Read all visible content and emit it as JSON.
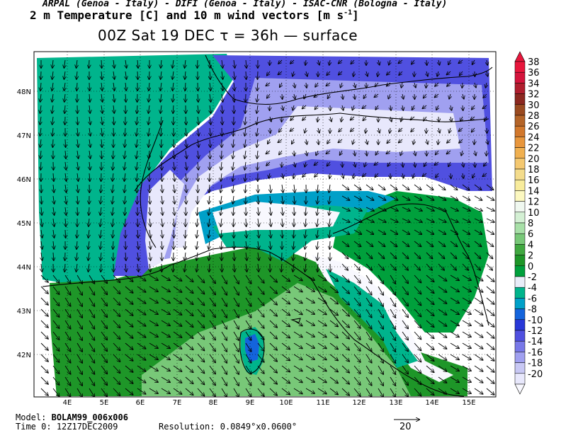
{
  "header": {
    "line1": "ARPAL (Genoa - Italy)  -  DIFI (Genoa - Italy)  -  ISAC-CNR (Bologna - Italy)",
    "line2": "2 m Temperature [C] and 10 m wind vectors [m s",
    "line2_sup": "-1",
    "line2_end": "]",
    "line3": "00Z Sat 19 DEC  τ = 36h  —  surface"
  },
  "footer": {
    "model_label": "Model:",
    "model_value": "BOLAM99_006x006",
    "time_label": "Time 0:",
    "time_value": "12Z17DEC2009",
    "resolution_label": "Resolution:",
    "resolution_value": "0.0849°x0.0600°",
    "vector_ref": "20"
  },
  "axes": {
    "lon_labels": [
      "4E",
      "5E",
      "6E",
      "7E",
      "8E",
      "9E",
      "10E",
      "11E",
      "12E",
      "13E",
      "14E",
      "15E"
    ],
    "lat_labels": [
      "48N",
      "47N",
      "46N",
      "45N",
      "44N",
      "43N",
      "42N"
    ]
  },
  "colorbar": {
    "labels": [
      "38",
      "36",
      "34",
      "32",
      "30",
      "28",
      "26",
      "24",
      "22",
      "20",
      "18",
      "16",
      "14",
      "12",
      "10",
      "8",
      "6",
      "4",
      "2",
      "0",
      "-2",
      "-4",
      "-6",
      "-8",
      "-10",
      "-12",
      "-14",
      "-16",
      "-18",
      "-20"
    ],
    "colors": [
      "#e8163c",
      "#d4143c",
      "#b01e2e",
      "#8c2820",
      "#9a4a20",
      "#b46428",
      "#d2782c",
      "#e8963c",
      "#f0b050",
      "#f4c870",
      "#f4dc8c",
      "#f8ec9c",
      "#fcf8c0",
      "#f0f8f0",
      "#d4f0d4",
      "#a8e0a8",
      "#78c878",
      "#40a840",
      "#1e9628",
      "#00a03c",
      "#e8ecf8",
      "#00b48c",
      "#00a0c8",
      "#1464dc",
      "#2838d8",
      "#5050e0",
      "#7878e8",
      "#a0a0f0",
      "#c8c8f4",
      "#e8e8fc",
      "#f8f8fe"
    ]
  }
}
